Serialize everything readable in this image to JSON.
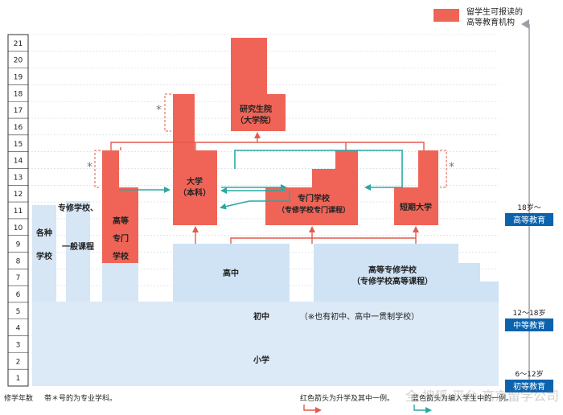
{
  "legend": {
    "label_line1": "留学生可报读的",
    "label_line2": "高等教育机构",
    "color": "#ef6457"
  },
  "colors": {
    "red": "#ef6457",
    "blue": "#cfe3f5",
    "teal": "#2aa8a2",
    "red_line": "#e35a4f",
    "grey_line": "#9aa0a6",
    "band": "#0b63ae"
  },
  "years": [
    "1",
    "2",
    "3",
    "4",
    "5",
    "6",
    "7",
    "8",
    "9",
    "10",
    "11",
    "12",
    "13",
    "14",
    "15",
    "16",
    "17",
    "18",
    "19",
    "20",
    "21"
  ],
  "institutions": {
    "graduate_school": [
      "研究生院",
      "（大学院）"
    ],
    "university": [
      "大学",
      "（本科）"
    ],
    "vocational": [
      "专门学校",
      "（专修学校专门课程）"
    ],
    "junior_college": "短期大学",
    "tech_college": [
      "高等",
      "专门",
      "学校"
    ],
    "various_schools": [
      "各种",
      "学校"
    ],
    "special_general": [
      "专修学校、",
      "一般课程"
    ]
  },
  "lower": {
    "high_school": "高中",
    "tech_high": [
      "高等专修学校",
      "（专修学校高等课程）"
    ],
    "junior_high": "初中",
    "junior_high_note": "（※也有初中、高中一贯制学校）",
    "elementary": "小学"
  },
  "age_bands": [
    {
      "age": "18岁～",
      "label": "高等教育"
    },
    {
      "age": "12～18岁",
      "label": "中等教育"
    },
    {
      "age": "6～12岁",
      "label": "初等教育"
    }
  ],
  "asterisk": "*",
  "footer": {
    "years_label": "修学年数",
    "note": "带＊号的为专业学科。",
    "legend_red": "红色箭头为升学及其中一例。",
    "legend_teal": "蓝色箭头为编入学生中的一例。"
  },
  "watermark": "全 搜狐 平台 高京留学公司"
}
